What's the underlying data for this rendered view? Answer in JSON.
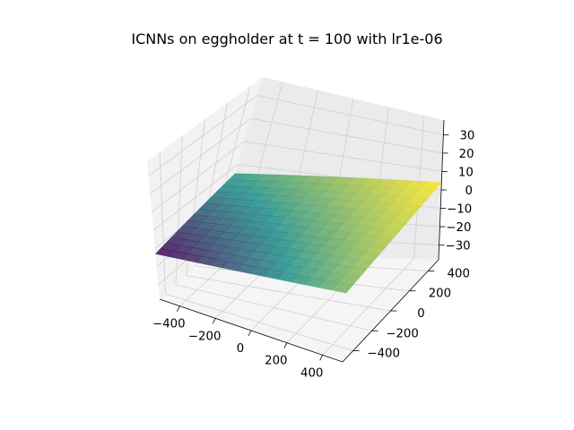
{
  "chart_data": {
    "type": "surface3d",
    "title": "ICNNs on eggholder at t = 100 with lr1e-06",
    "xlabel": "",
    "ylabel": "",
    "zlabel": "",
    "xlim": [
      -512,
      512
    ],
    "ylim": [
      -512,
      512
    ],
    "zlim": [
      -38,
      38
    ],
    "x_ticks": [
      "−400",
      "−200",
      "0",
      "200",
      "400"
    ],
    "y_ticks": [
      "−400",
      "−200",
      "0",
      "200",
      "400"
    ],
    "z_ticks": [
      "−30",
      "−20",
      "−10",
      "0",
      "10",
      "20",
      "30"
    ],
    "grid": true,
    "colormap": "viridis",
    "surface": {
      "x": [
        -512,
        512
      ],
      "y": [
        -512,
        512
      ],
      "z": [
        [
          -13,
          -4
        ],
        [
          -1,
          4
        ]
      ]
    },
    "colors": {
      "pane_left": "#f2f2f2",
      "pane_back": "#ebebeb",
      "pane_floor": "#f5f5f5",
      "grid": "#cfcfcf",
      "surface_low": "#440154",
      "surface_mid": "#21918c",
      "surface_high": "#fde725"
    }
  }
}
